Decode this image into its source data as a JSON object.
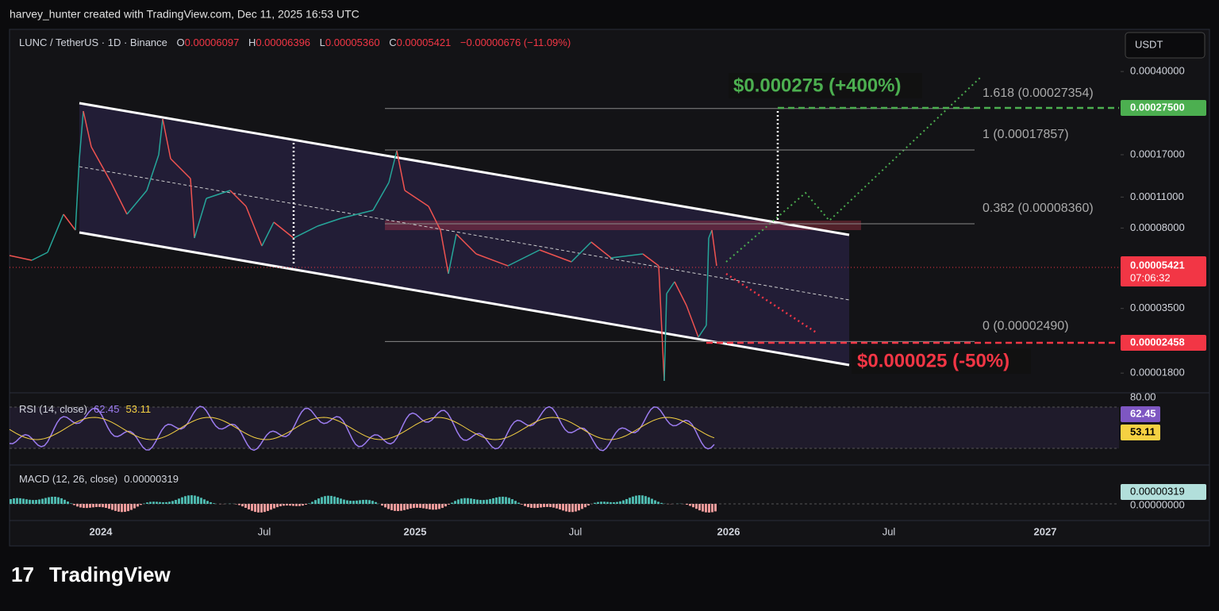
{
  "header": {
    "caption": "harvey_hunter created with TradingView.com, Dec 11, 2025 16:53 UTC",
    "logo": "TradingView"
  },
  "legend": {
    "symbol": "LUNC / TetherUS · 1D · Binance",
    "open_label": "O",
    "open": "0.00006097",
    "high_label": "H",
    "high": "0.00006396",
    "low_label": "L",
    "low": "0.00005360",
    "close_label": "C",
    "close": "0.00005421",
    "change": "−0.00000676 (−11.09%)"
  },
  "currency": "USDT",
  "price_axis": {
    "scale": "log",
    "ylim": [
      1.47e-05,
      0.000617
    ],
    "yticks": [
      {
        "value": 0.0004,
        "label": "0.00040000"
      },
      {
        "value": 0.00017,
        "label": "0.00017000"
      },
      {
        "value": 0.00011,
        "label": "0.00011000"
      },
      {
        "value": 8e-05,
        "label": "0.00008000"
      },
      {
        "value": 3.5e-05,
        "label": "0.00003500"
      },
      {
        "value": 1.8e-05,
        "label": "0.00001800"
      }
    ]
  },
  "badges": {
    "target": {
      "value": 0.000275,
      "label": "0.00027500"
    },
    "last": {
      "value": 5.421e-05,
      "label": "0.00005421",
      "countdown": "07:06:32"
    },
    "stop": {
      "value": 2.458e-05,
      "label": "0.00002458"
    }
  },
  "fib_levels": [
    {
      "label": "1.618 (0.00027354)",
      "value": 0.00027354
    },
    {
      "label": "1 (0.00017857)",
      "value": 0.00017857
    },
    {
      "label": "0.382 (0.00008360)",
      "value": 8.36e-05
    },
    {
      "label": "0 (0.00002490)",
      "value": 2.49e-05
    }
  ],
  "annotations": {
    "target": "$0.000275 (+400%)",
    "stop": "$0.000025 (-50%)"
  },
  "time_axis": [
    "2024",
    "Jul",
    "2025",
    "Jul",
    "2026",
    "Jul",
    "2027"
  ],
  "rsi": {
    "label": "RSI (14, close)",
    "value": "62.45",
    "ma": "53.11",
    "axis_top": "80.00"
  },
  "macd": {
    "label": "MACD (12, 26, close)",
    "value": "0.00000319",
    "axis_zero": "0.00000000"
  }
}
